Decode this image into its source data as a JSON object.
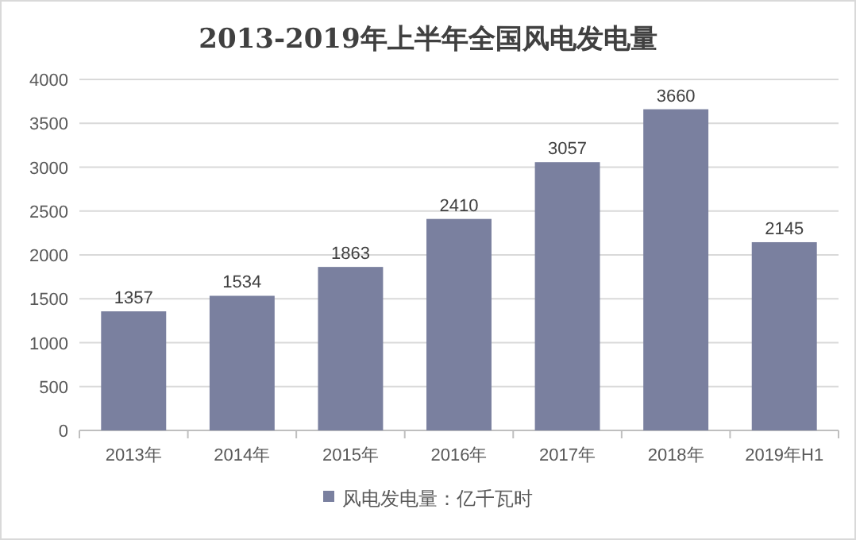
{
  "chart_data": {
    "type": "bar",
    "title": "2013-2019年上半年全国风电发电量",
    "categories": [
      "2013年",
      "2014年",
      "2015年",
      "2016年",
      "2017年",
      "2018年",
      "2019年H1"
    ],
    "series": [
      {
        "name": "风电发电量：亿千瓦时",
        "color": "#7a809f",
        "values": [
          1357,
          1534,
          1863,
          2410,
          3057,
          3660,
          2145
        ]
      }
    ],
    "ylim": [
      0,
      4000
    ],
    "yticks": [
      0,
      500,
      1000,
      1500,
      2000,
      2500,
      3000,
      3500,
      4000
    ],
    "grid": "y",
    "data_labels": true,
    "legend": "bottom"
  }
}
